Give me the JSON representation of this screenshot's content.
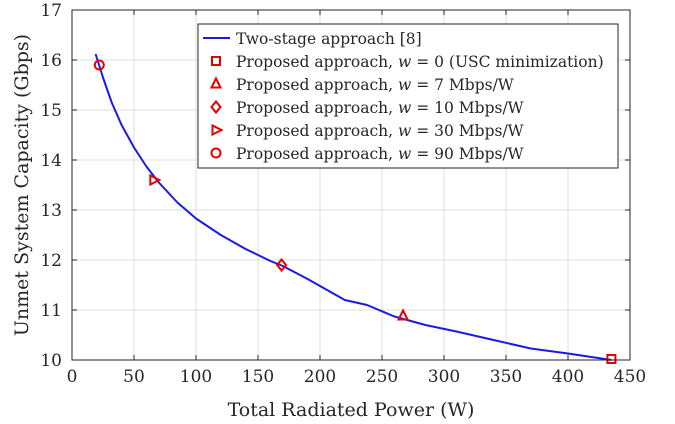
{
  "chart_data": {
    "type": "line",
    "xlabel": "Total Radiated Power (W)",
    "ylabel": "Unmet System Capacity (Gbps)",
    "xlim": [
      0,
      450
    ],
    "ylim": [
      10,
      17
    ],
    "x_ticks": [
      "0",
      "50",
      "100",
      "150",
      "200",
      "250",
      "300",
      "350",
      "400",
      "450"
    ],
    "y_ticks": [
      "10",
      "11",
      "12",
      "13",
      "14",
      "15",
      "16",
      "17"
    ],
    "grid": true,
    "legend_position": "top-right",
    "colors": {
      "line": "#1a1ae6",
      "marker": "#e60000",
      "axis": "#262626",
      "grid": "#dfdfdf"
    },
    "series": [
      {
        "name": "Two-stage approach [8]",
        "style": "line",
        "x": [
          19,
          25,
          32,
          40,
          50,
          60,
          70,
          85,
          100,
          120,
          140,
          160,
          170,
          180,
          190,
          200,
          220,
          238,
          260,
          285,
          310,
          340,
          370,
          400,
          435
        ],
        "y": [
          16.12,
          15.65,
          15.15,
          14.7,
          14.25,
          13.87,
          13.55,
          13.15,
          12.83,
          12.5,
          12.22,
          11.98,
          11.88,
          11.75,
          11.62,
          11.48,
          11.2,
          11.1,
          10.87,
          10.7,
          10.57,
          10.4,
          10.23,
          10.13,
          10.0
        ]
      },
      {
        "name": "Proposed approach, w = 0 (USC minimization)",
        "style": "marker",
        "marker": "square",
        "x": [
          435
        ],
        "y": [
          10.02
        ]
      },
      {
        "name": "Proposed approach, w = 7 Mbps/W",
        "style": "marker",
        "marker": "triangle-up",
        "x": [
          267
        ],
        "y": [
          10.88
        ]
      },
      {
        "name": "Proposed approach, w = 10 Mbps/W",
        "style": "marker",
        "marker": "diamond",
        "x": [
          169
        ],
        "y": [
          11.9
        ]
      },
      {
        "name": "Proposed approach, w = 30 Mbps/W",
        "style": "marker",
        "marker": "triangle-right",
        "x": [
          66
        ],
        "y": [
          13.6
        ]
      },
      {
        "name": "Proposed approach, w = 90 Mbps/W",
        "style": "marker",
        "marker": "circle",
        "x": [
          22
        ],
        "y": [
          15.9
        ]
      }
    ],
    "legend": [
      {
        "series": 0,
        "prefix": "Two-stage approach [8]",
        "var": "",
        "suffix": ""
      },
      {
        "series": 1,
        "prefix": "Proposed approach, ",
        "var": "w",
        "suffix": " = 0 (USC minimization)"
      },
      {
        "series": 2,
        "prefix": "Proposed approach, ",
        "var": "w",
        "suffix": " = 7 Mbps/W"
      },
      {
        "series": 3,
        "prefix": "Proposed approach, ",
        "var": "w",
        "suffix": " = 10 Mbps/W"
      },
      {
        "series": 4,
        "prefix": "Proposed approach, ",
        "var": "w",
        "suffix": " = 30 Mbps/W"
      },
      {
        "series": 5,
        "prefix": "Proposed approach, ",
        "var": "w",
        "suffix": " = 90 Mbps/W"
      }
    ]
  }
}
